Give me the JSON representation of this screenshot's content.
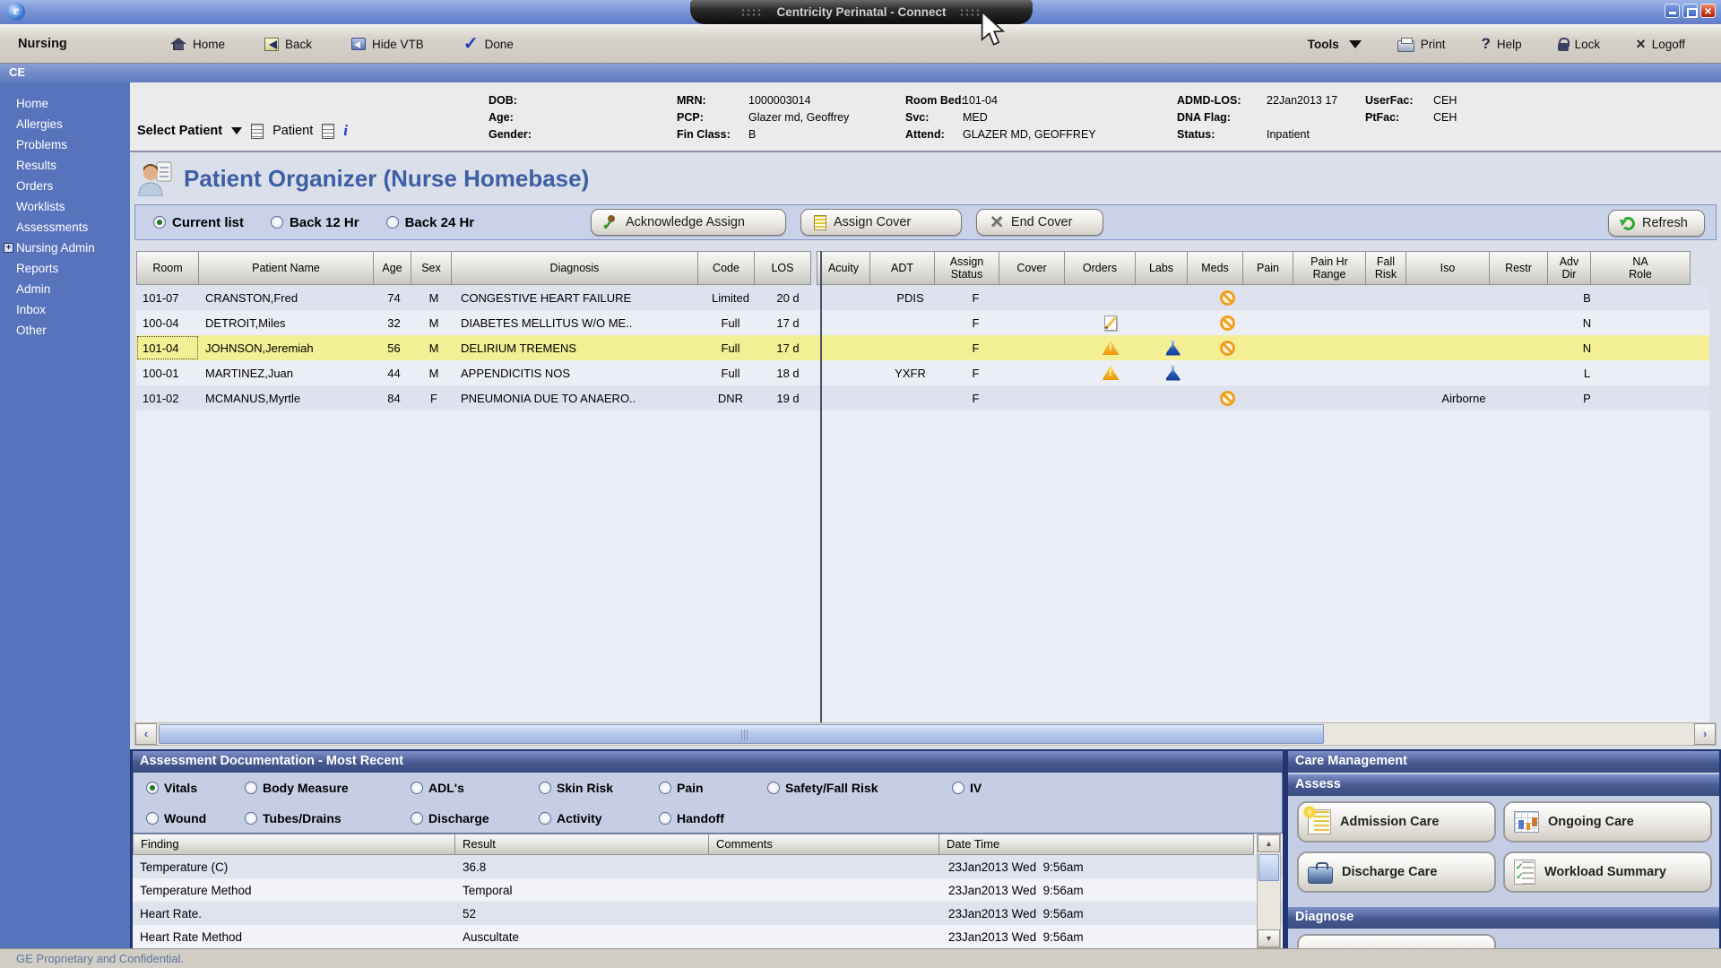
{
  "window": {
    "title": "Centricity Perinatal - Connect"
  },
  "toolbar": {
    "app_label": "Nursing",
    "home": "Home",
    "back": "Back",
    "hide_vtb": "Hide VTB",
    "done": "Done",
    "tools": "Tools",
    "print": "Print",
    "help": "Help",
    "lock": "Lock",
    "logoff": "Logoff"
  },
  "context_bar": {
    "label": "CE"
  },
  "sidebar": {
    "items": [
      {
        "label": "Home"
      },
      {
        "label": "Allergies"
      },
      {
        "label": "Problems"
      },
      {
        "label": "Results"
      },
      {
        "label": "Orders"
      },
      {
        "label": "Worklists"
      },
      {
        "label": "Assessments"
      },
      {
        "label": "Nursing Admin",
        "expandable": true
      },
      {
        "label": "Reports"
      },
      {
        "label": "Admin"
      },
      {
        "label": "Inbox"
      },
      {
        "label": "Other"
      }
    ]
  },
  "patient_banner": {
    "select_patient_label": "Select Patient",
    "patient_label": "Patient",
    "info_icon": "i",
    "columns": [
      [
        {
          "label": "DOB:",
          "value": ""
        },
        {
          "label": "Age:",
          "value": ""
        },
        {
          "label": "Gender:",
          "value": ""
        }
      ],
      [
        {
          "label": "MRN:",
          "value": "1000003014"
        },
        {
          "label": "PCP:",
          "value": "Glazer md, Geoffrey"
        },
        {
          "label": "Fin Class:",
          "value": "B"
        }
      ],
      [
        {
          "label": "Room Bed:",
          "value": "101-04"
        },
        {
          "label": "Svc:",
          "value": "MED"
        },
        {
          "label": "Attend:",
          "value": "GLAZER MD, GEOFFREY"
        }
      ],
      [
        {
          "label": "ADMD-LOS:",
          "value": "22Jan2013 17"
        },
        {
          "label": "DNA Flag:",
          "value": ""
        },
        {
          "label": "Status:",
          "value": "Inpatient"
        }
      ],
      [
        {
          "label": "UserFac:",
          "value": "CEH"
        },
        {
          "label": "PtFac:",
          "value": "CEH"
        }
      ]
    ]
  },
  "page": {
    "title": "Patient Organizer (Nurse Homebase)"
  },
  "organizer": {
    "view_options": [
      {
        "label": "Current list",
        "selected": true
      },
      {
        "label": "Back 12 Hr",
        "selected": false
      },
      {
        "label": "Back 24 Hr",
        "selected": false
      }
    ],
    "acknowledge_assign_label": "Acknowledge Assign",
    "assign_cover_label": "Assign Cover",
    "end_cover_label": "End Cover",
    "refresh_label": "Refresh",
    "columns": [
      "Room",
      "Patient Name",
      "Age",
      "Sex",
      "Diagnosis",
      "Code",
      "LOS",
      "Acuity",
      "ADT",
      "Assign\nStatus",
      "Cover",
      "Orders",
      "Labs",
      "Meds",
      "Pain",
      "Pain Hr\nRange",
      "Fall\nRisk",
      "Iso",
      "Restr",
      "Adv\nDir",
      "NA\nRole"
    ],
    "rows": [
      {
        "room": "101-07",
        "name": "CRANSTON,Fred",
        "age": "74",
        "sex": "M",
        "diagnosis": "CONGESTIVE HEART FAILURE",
        "code": "Limited",
        "los": "20 d",
        "acuity": "",
        "adt": "PDIS",
        "assign_status": "F",
        "cover": "",
        "pain": "",
        "pain_hr_range": "",
        "fall_risk": "",
        "iso": "",
        "restr": "",
        "adv_dir": "B",
        "na_role": "",
        "icons": {
          "meds": "no-meds"
        },
        "selected": false
      },
      {
        "room": "100-04",
        "name": "DETROIT,Miles",
        "age": "32",
        "sex": "M",
        "diagnosis": "DIABETES MELLITUS W/O ME..",
        "code": "Full",
        "los": "17 d",
        "acuity": "",
        "adt": "",
        "assign_status": "F",
        "cover": "",
        "pain": "",
        "pain_hr_range": "",
        "fall_risk": "",
        "iso": "",
        "restr": "",
        "adv_dir": "N",
        "na_role": "",
        "icons": {
          "orders": "order-edit",
          "meds": "no-meds"
        },
        "selected": false
      },
      {
        "room": "101-04",
        "name": "JOHNSON,Jeremiah",
        "age": "56",
        "sex": "M",
        "diagnosis": "DELIRIUM TREMENS",
        "code": "Full",
        "los": "17 d",
        "acuity": "",
        "adt": "",
        "assign_status": "F",
        "cover": "",
        "pain": "",
        "pain_hr_range": "",
        "fall_risk": "",
        "iso": "",
        "restr": "",
        "adv_dir": "N",
        "na_role": "",
        "icons": {
          "orders": "warning",
          "labs": "flask",
          "meds": "no-meds"
        },
        "selected": true
      },
      {
        "room": "100-01",
        "name": "MARTINEZ,Juan",
        "age": "44",
        "sex": "M",
        "diagnosis": "APPENDICITIS NOS",
        "code": "Full",
        "los": "18 d",
        "acuity": "",
        "adt": "YXFR",
        "assign_status": "F",
        "cover": "",
        "pain": "",
        "pain_hr_range": "",
        "fall_risk": "",
        "iso": "",
        "restr": "",
        "adv_dir": "L",
        "na_role": "",
        "icons": {
          "orders": "warning",
          "labs": "flask"
        },
        "selected": false
      },
      {
        "room": "101-02",
        "name": "MCMANUS,Myrtle",
        "age": "84",
        "sex": "F",
        "diagnosis": "PNEUMONIA DUE TO ANAERO..",
        "code": "DNR",
        "los": "19 d",
        "acuity": "",
        "adt": "",
        "assign_status": "F",
        "cover": "",
        "pain": "",
        "pain_hr_range": "",
        "fall_risk": "",
        "iso": "Airborne",
        "restr": "",
        "adv_dir": "P",
        "na_role": "",
        "icons": {
          "meds": "no-meds"
        },
        "selected": false
      }
    ]
  },
  "assessment": {
    "title": "Assessment Documentation - Most Recent",
    "radio_rows": [
      [
        {
          "label": "Vitals",
          "selected": true
        },
        {
          "label": "Body Measure",
          "selected": false
        },
        {
          "label": "ADL's",
          "selected": false
        },
        {
          "label": "Skin Risk",
          "selected": false
        },
        {
          "label": "Pain",
          "selected": false
        },
        {
          "label": "Safety/Fall Risk",
          "selected": false
        },
        {
          "label": "IV",
          "selected": false
        }
      ],
      [
        {
          "label": "Wound",
          "selected": false
        },
        {
          "label": "Tubes/Drains",
          "selected": false
        },
        {
          "label": "Discharge",
          "selected": false
        },
        {
          "label": "Activity",
          "selected": false
        },
        {
          "label": "Handoff",
          "selected": false
        }
      ]
    ],
    "table": {
      "columns": [
        "Finding",
        "Result",
        "Comments",
        "Date Time"
      ],
      "rows": [
        [
          "Temperature (C)",
          "36.8",
          "",
          "23Jan2013 Wed  9:56am"
        ],
        [
          "Temperature Method",
          "Temporal",
          "",
          "23Jan2013 Wed  9:56am"
        ],
        [
          "Heart Rate.",
          "52",
          "",
          "23Jan2013 Wed  9:56am"
        ],
        [
          "Heart Rate Method",
          "Auscultate",
          "",
          "23Jan2013 Wed  9:56am"
        ]
      ]
    }
  },
  "care_management": {
    "title": "Care Management",
    "assess_title": "Assess",
    "diagnose_title": "Diagnose",
    "buttons": [
      {
        "label": "Admission Care"
      },
      {
        "label": "Ongoing Care"
      },
      {
        "label": "Discharge Care"
      },
      {
        "label": "Workload Summary"
      }
    ]
  },
  "status_bar": {
    "text": "GE Proprietary and Confidential."
  },
  "colors": {
    "selected_row_yellow": "#f2ef95",
    "warning_orange": "#f0a018",
    "flask_blue": "#2458b8",
    "no_meds_orange": "#f0a01c",
    "sidebar_blue": "#5673bb",
    "section_bar_blue": "#46598f",
    "refresh_green": "#2fa832"
  }
}
